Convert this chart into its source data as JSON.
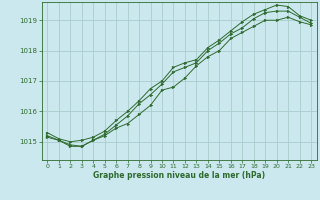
{
  "title": "Graphe pression niveau de la mer (hPa)",
  "background_color": "#cce8ef",
  "grid_color": "#aacccc",
  "line_color": "#2d6a2d",
  "text_color": "#2d6a2d",
  "xlim": [
    -0.5,
    23.5
  ],
  "ylim": [
    1014.4,
    1019.6
  ],
  "yticks": [
    1015,
    1016,
    1017,
    1018,
    1019
  ],
  "xticks": [
    0,
    1,
    2,
    3,
    4,
    5,
    6,
    7,
    8,
    9,
    10,
    11,
    12,
    13,
    14,
    15,
    16,
    17,
    18,
    19,
    20,
    21,
    22,
    23
  ],
  "series": [
    [
      1015.15,
      1015.05,
      1014.85,
      1014.85,
      1015.05,
      1015.2,
      1015.45,
      1015.6,
      1015.9,
      1016.2,
      1016.7,
      1016.8,
      1017.1,
      1017.5,
      1017.8,
      1018.0,
      1018.4,
      1018.6,
      1018.8,
      1019.0,
      1019.0,
      1019.1,
      1018.95,
      1018.85
    ],
    [
      1015.2,
      1015.05,
      1014.9,
      1014.85,
      1015.05,
      1015.25,
      1015.55,
      1015.85,
      1016.25,
      1016.55,
      1016.9,
      1017.3,
      1017.45,
      1017.6,
      1018.0,
      1018.25,
      1018.55,
      1018.75,
      1019.05,
      1019.25,
      1019.3,
      1019.3,
      1019.1,
      1018.9
    ],
    [
      1015.3,
      1015.1,
      1015.0,
      1015.05,
      1015.15,
      1015.35,
      1015.7,
      1016.0,
      1016.35,
      1016.75,
      1017.0,
      1017.45,
      1017.6,
      1017.7,
      1018.1,
      1018.35,
      1018.65,
      1018.95,
      1019.2,
      1019.35,
      1019.5,
      1019.45,
      1019.15,
      1019.0
    ]
  ]
}
